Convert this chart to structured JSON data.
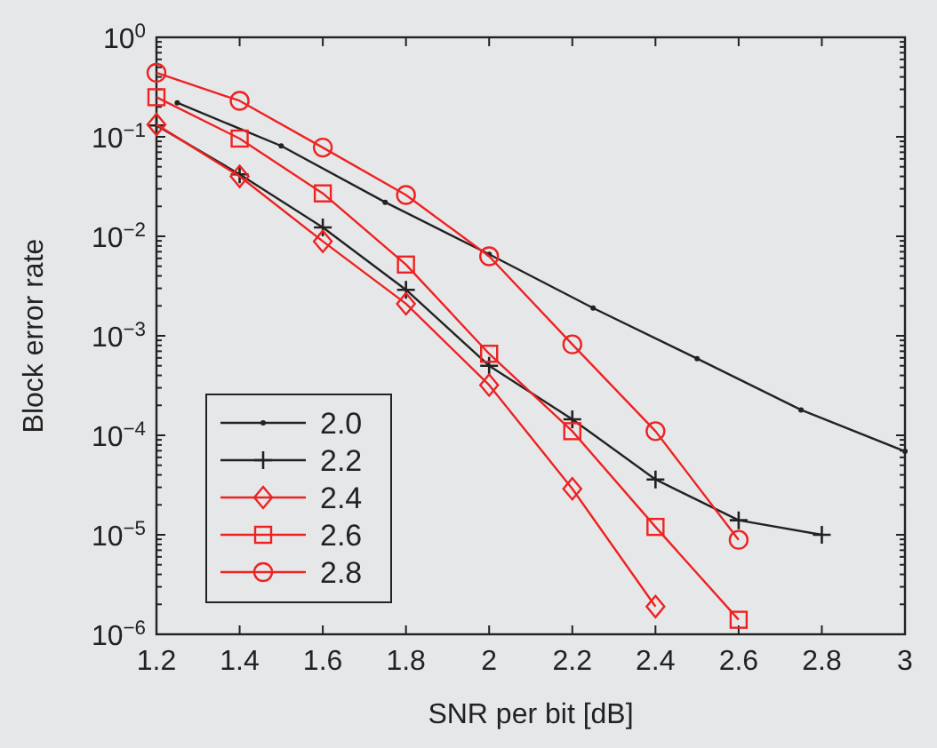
{
  "chart_data": {
    "type": "line",
    "xlabel": "SNR per bit [dB]",
    "ylabel": "Block error rate",
    "log": "y",
    "grid": false,
    "legend": "bottom left",
    "line_style": "solid",
    "xlim": [
      1.2,
      3
    ],
    "xticks": [
      {
        "value": 1.2,
        "label": "1.2"
      },
      {
        "value": 1.4,
        "label": "1.4"
      },
      {
        "value": 1.6,
        "label": "1.6"
      },
      {
        "value": 1.8,
        "label": "1.8"
      },
      {
        "value": 2,
        "label": "2"
      },
      {
        "value": 2.2,
        "label": "2.2"
      },
      {
        "value": 2.4,
        "label": "2.4"
      },
      {
        "value": 2.6,
        "label": "2.6"
      },
      {
        "value": 2.8,
        "label": "2.8"
      },
      {
        "value": 3,
        "label": "3"
      }
    ],
    "ylim": [
      1e-06,
      1
    ],
    "yticks": [
      {
        "value": 1e-06,
        "label": "10$^{−6}$"
      },
      {
        "value": 1e-05,
        "label": "10$^{−5}$"
      },
      {
        "value": 0.0001,
        "label": "10$^{−4}$"
      },
      {
        "value": 0.001,
        "label": "10$^{−3}$"
      },
      {
        "value": 0.01,
        "label": "10$^{−2}$"
      },
      {
        "value": 0.1,
        "label": "10$^{−1}$"
      },
      {
        "value": 1,
        "label": "10$^{0}$"
      }
    ],
    "series": [
      {
        "name": "2.0",
        "color": "#222222",
        "marker": "point",
        "x": [
          1.25,
          1.5,
          1.75,
          2.0,
          2.25,
          2.5,
          2.75,
          3.0
        ],
        "values": [
          0.22,
          0.081,
          0.022,
          0.0066,
          0.0019,
          0.00059,
          0.00018,
          6.9e-05
        ]
      },
      {
        "name": "2.2",
        "color": "#222222",
        "marker": "cross",
        "x": [
          1.2,
          1.4,
          1.6,
          1.8,
          2.0,
          2.2,
          2.4,
          2.6,
          2.8
        ],
        "values": [
          0.13,
          0.042,
          0.0123,
          0.0029,
          0.0005,
          0.000145,
          3.6e-05,
          1.4e-05,
          1e-05
        ]
      },
      {
        "name": "2.4",
        "color": "#ee2222",
        "marker": "diamond",
        "x": [
          1.2,
          1.4,
          1.6,
          1.8,
          2.0,
          2.2,
          2.4
        ],
        "values": [
          0.133,
          0.04,
          0.0089,
          0.0021,
          0.00032,
          2.9e-05,
          1.9e-06
        ]
      },
      {
        "name": "2.6",
        "color": "#ee2222",
        "marker": "square",
        "x": [
          1.2,
          1.4,
          1.6,
          1.8,
          2.0,
          2.2,
          2.4,
          2.6
        ],
        "values": [
          0.25,
          0.096,
          0.027,
          0.0052,
          0.00066,
          0.00011,
          1.2e-05,
          1.4e-06
        ]
      },
      {
        "name": "2.8",
        "color": "#ee2222",
        "marker": "circle",
        "x": [
          1.2,
          1.4,
          1.6,
          1.8,
          2.0,
          2.2,
          2.4,
          2.6
        ],
        "values": [
          0.44,
          0.23,
          0.078,
          0.026,
          0.0063,
          0.00082,
          0.00011,
          8.9e-06
        ]
      }
    ]
  }
}
